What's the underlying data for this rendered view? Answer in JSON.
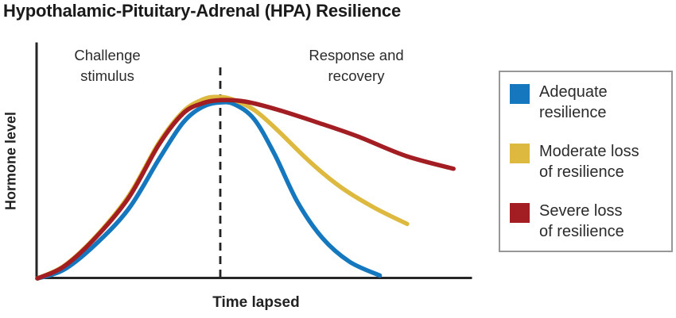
{
  "title": "Hypothalamic-Pituitary-Adrenal (HPA) Resilience",
  "axes": {
    "x_label": "Time lapsed",
    "y_label": "Hormone level"
  },
  "annotations": {
    "left": {
      "lines": [
        "Challenge",
        "stimulus"
      ]
    },
    "right": {
      "lines": [
        "Response and",
        "recovery"
      ]
    }
  },
  "legend": {
    "items": [
      {
        "name": "adequate-resilience",
        "lines": [
          "Adequate",
          "resilience"
        ],
        "color": "#1577BE"
      },
      {
        "name": "moderate-loss-of-resilience",
        "lines": [
          "Moderate loss",
          "of resilience"
        ],
        "color": "#DDB93F"
      },
      {
        "name": "severe-loss-of-resilience",
        "lines": [
          "Severe loss",
          "of resilience"
        ],
        "color": "#A21E22"
      }
    ]
  },
  "colors": {
    "axis": "#262626",
    "dashed_line": "#222222",
    "text": "#2B2B2B",
    "legend_border": "#979797",
    "blue": "#1577BE",
    "yellow": "#DDB93F",
    "red": "#A21E22"
  },
  "chart_data": {
    "type": "line",
    "title": "Hypothalamic-Pituitary-Adrenal (HPA) Resilience",
    "xlabel": "Time lapsed",
    "ylabel": "Hormone level",
    "x_range": [
      0,
      100
    ],
    "y_range": [
      0,
      110
    ],
    "axis_ticks": "none",
    "grid": false,
    "legend_position": "right",
    "divider_x": 42.2,
    "divider_style": "dashed-vertical",
    "phases": [
      {
        "label": "Challenge stimulus",
        "x_span": [
          0,
          42.2
        ]
      },
      {
        "label": "Response and recovery",
        "x_span": [
          42.2,
          100
        ]
      }
    ],
    "series": [
      {
        "name": "Adequate resilience",
        "color": "#1577BE",
        "points": [
          [
            0,
            0.4
          ],
          [
            6,
            5
          ],
          [
            13,
            18
          ],
          [
            21,
            38
          ],
          [
            28,
            65
          ],
          [
            33.6,
            85
          ],
          [
            38,
            93.5
          ],
          [
            42,
            96
          ],
          [
            45.5,
            95
          ],
          [
            50,
            87
          ],
          [
            54.7,
            68
          ],
          [
            60,
            42
          ],
          [
            65.7,
            22.5
          ],
          [
            72,
            9.5
          ],
          [
            79,
            2
          ]
        ]
      },
      {
        "name": "Moderate loss of resilience",
        "color": "#DDB93F",
        "points": [
          [
            0,
            0.4
          ],
          [
            6,
            7
          ],
          [
            13,
            22
          ],
          [
            21,
            45
          ],
          [
            28,
            74
          ],
          [
            33.6,
            91
          ],
          [
            38,
            97.5
          ],
          [
            41,
            99
          ],
          [
            44.6,
            98
          ],
          [
            50,
            92
          ],
          [
            55.6,
            80.5
          ],
          [
            63,
            63.5
          ],
          [
            70,
            50
          ],
          [
            77.6,
            39
          ],
          [
            85.3,
            30
          ]
        ]
      },
      {
        "name": "Severe loss of resilience",
        "color": "#A21E22",
        "points": [
          [
            0,
            0.4
          ],
          [
            6,
            6.7
          ],
          [
            13,
            21.5
          ],
          [
            21,
            44
          ],
          [
            28,
            73
          ],
          [
            33.6,
            90
          ],
          [
            38,
            95.5
          ],
          [
            42.2,
            97.3
          ],
          [
            48,
            96.5
          ],
          [
            55.6,
            92
          ],
          [
            64.8,
            85
          ],
          [
            74,
            77.5
          ],
          [
            85,
            67
          ],
          [
            96,
            60
          ]
        ]
      }
    ]
  }
}
